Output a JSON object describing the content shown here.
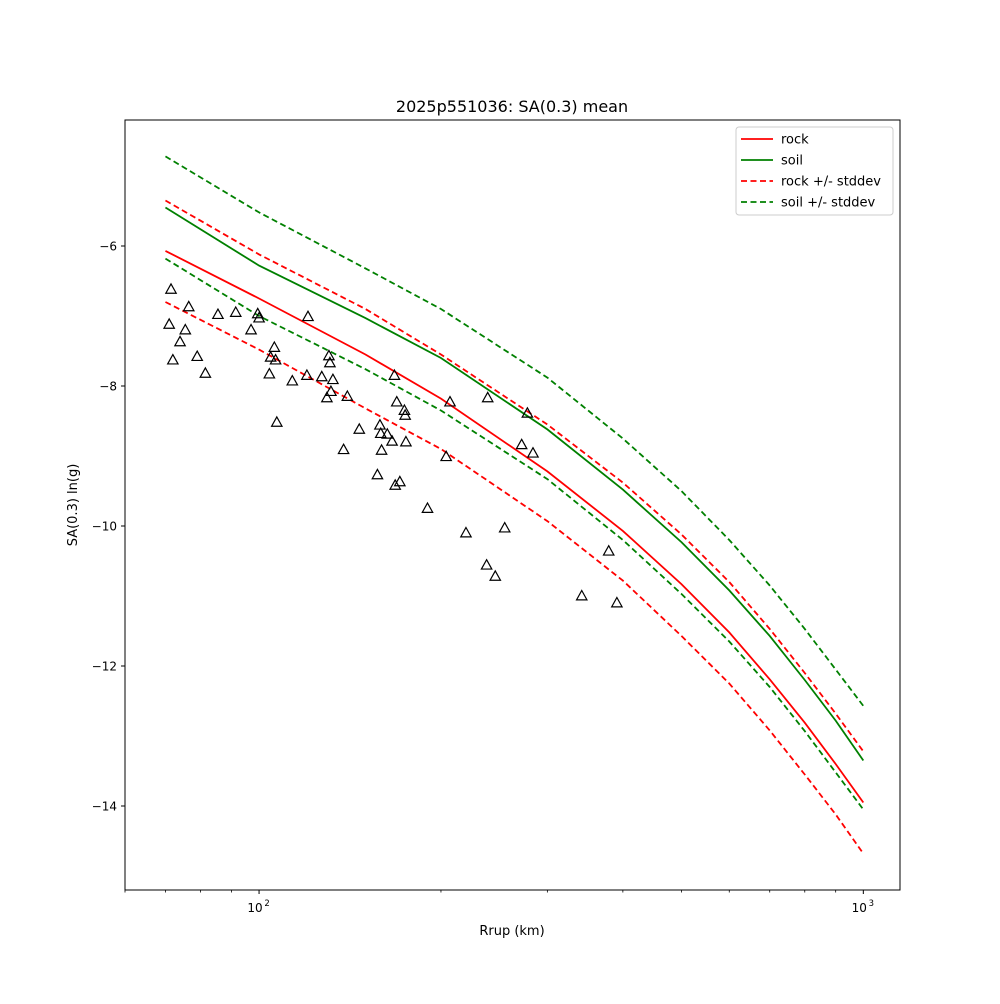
{
  "chart_data": {
    "type": "line",
    "title": "2025p551036: SA(0.3) mean",
    "xlabel": "Rrup (km)",
    "ylabel": "SA(0.3) ln(g)",
    "xscale": "log",
    "xlim": [
      60,
      1150
    ],
    "ylim": [
      -15.2,
      -4.2
    ],
    "grid": false,
    "legend_position": "top-right",
    "x_ticks": [
      {
        "value": 100,
        "base": "10",
        "exp": "2"
      },
      {
        "value": 1000,
        "base": "10",
        "exp": "3"
      }
    ],
    "y_ticks": [
      {
        "value": -14,
        "label": "−14"
      },
      {
        "value": -12,
        "label": "−12"
      },
      {
        "value": -10,
        "label": "−10"
      },
      {
        "value": -8,
        "label": "−8"
      },
      {
        "value": -6,
        "label": "−6"
      }
    ],
    "series": [
      {
        "name": "rock",
        "color": "#ff0000",
        "dash": false,
        "points": [
          [
            70,
            -6.07
          ],
          [
            100,
            -6.75
          ],
          [
            150,
            -7.55
          ],
          [
            200,
            -8.18
          ],
          [
            300,
            -9.22
          ],
          [
            400,
            -10.07
          ],
          [
            500,
            -10.83
          ],
          [
            600,
            -11.52
          ],
          [
            700,
            -12.19
          ],
          [
            800,
            -12.81
          ],
          [
            900,
            -13.4
          ],
          [
            1000,
            -13.95
          ]
        ]
      },
      {
        "name": "soil",
        "color": "#008000",
        "dash": false,
        "points": [
          [
            70,
            -5.45
          ],
          [
            100,
            -6.28
          ],
          [
            150,
            -7.03
          ],
          [
            200,
            -7.6
          ],
          [
            300,
            -8.62
          ],
          [
            400,
            -9.48
          ],
          [
            500,
            -10.23
          ],
          [
            600,
            -10.92
          ],
          [
            700,
            -11.57
          ],
          [
            800,
            -12.2
          ],
          [
            900,
            -12.78
          ],
          [
            1000,
            -13.35
          ]
        ]
      }
    ],
    "stddev_series": [
      {
        "name": "rock +/- stddev",
        "color": "#ff0000",
        "dash": true,
        "upper": [
          [
            70,
            -5.35
          ],
          [
            100,
            -6.12
          ],
          [
            150,
            -6.9
          ],
          [
            200,
            -7.55
          ],
          [
            300,
            -8.55
          ],
          [
            400,
            -9.38
          ],
          [
            500,
            -10.12
          ],
          [
            600,
            -10.8
          ],
          [
            700,
            -11.47
          ],
          [
            800,
            -12.1
          ],
          [
            900,
            -12.68
          ],
          [
            1000,
            -13.22
          ]
        ],
        "lower": [
          [
            70,
            -6.8
          ],
          [
            100,
            -7.48
          ],
          [
            150,
            -8.32
          ],
          [
            200,
            -8.9
          ],
          [
            300,
            -9.93
          ],
          [
            400,
            -10.78
          ],
          [
            500,
            -11.57
          ],
          [
            600,
            -12.25
          ],
          [
            700,
            -12.92
          ],
          [
            800,
            -13.55
          ],
          [
            900,
            -14.12
          ],
          [
            1000,
            -14.68
          ]
        ]
      },
      {
        "name": "soil +/- stddev",
        "color": "#008000",
        "dash": true,
        "upper": [
          [
            70,
            -4.72
          ],
          [
            100,
            -5.52
          ],
          [
            150,
            -6.32
          ],
          [
            200,
            -6.9
          ],
          [
            300,
            -7.88
          ],
          [
            400,
            -8.75
          ],
          [
            500,
            -9.5
          ],
          [
            600,
            -10.2
          ],
          [
            700,
            -10.85
          ],
          [
            800,
            -11.47
          ],
          [
            900,
            -12.05
          ],
          [
            1000,
            -12.57
          ]
        ],
        "lower": [
          [
            70,
            -6.18
          ],
          [
            100,
            -7.0
          ],
          [
            150,
            -7.76
          ],
          [
            200,
            -8.35
          ],
          [
            300,
            -9.33
          ],
          [
            400,
            -10.2
          ],
          [
            500,
            -10.97
          ],
          [
            600,
            -11.65
          ],
          [
            700,
            -12.3
          ],
          [
            800,
            -12.93
          ],
          [
            900,
            -13.52
          ],
          [
            1000,
            -14.05
          ]
        ]
      }
    ],
    "observations": {
      "marker": "triangle",
      "points": [
        [
          71.5,
          -6.62
        ],
        [
          71,
          -7.12
        ],
        [
          72,
          -7.63
        ],
        [
          74,
          -7.37
        ],
        [
          75.5,
          -7.2
        ],
        [
          76.5,
          -6.87
        ],
        [
          79,
          -7.58
        ],
        [
          81.5,
          -7.82
        ],
        [
          85.5,
          -6.98
        ],
        [
          91.5,
          -6.95
        ],
        [
          97,
          -7.2
        ],
        [
          99.5,
          -6.97
        ],
        [
          100,
          -7.03
        ],
        [
          104,
          -7.83
        ],
        [
          104.5,
          -7.59
        ],
        [
          106,
          -7.45
        ],
        [
          106.5,
          -7.63
        ],
        [
          107,
          -8.52
        ],
        [
          113.5,
          -7.93
        ],
        [
          120.5,
          -7.01
        ],
        [
          120,
          -7.85
        ],
        [
          127,
          -7.87
        ],
        [
          129.5,
          -8.17
        ],
        [
          130.5,
          -7.57
        ],
        [
          131,
          -7.67
        ],
        [
          131.5,
          -8.08
        ],
        [
          132.5,
          -7.91
        ],
        [
          138,
          -8.91
        ],
        [
          140,
          -8.15
        ],
        [
          146.5,
          -8.62
        ],
        [
          157,
          -9.27
        ],
        [
          158.5,
          -8.56
        ],
        [
          159,
          -8.68
        ],
        [
          159.5,
          -8.92
        ],
        [
          163,
          -8.69
        ],
        [
          166,
          -8.79
        ],
        [
          167.5,
          -7.85
        ],
        [
          168,
          -9.42
        ],
        [
          169,
          -8.23
        ],
        [
          171,
          -9.37
        ],
        [
          174,
          -8.35
        ],
        [
          174.5,
          -8.42
        ],
        [
          175,
          -8.8
        ],
        [
          190,
          -9.75
        ],
        [
          204,
          -9.01
        ],
        [
          207,
          -8.23
        ],
        [
          220,
          -10.1
        ],
        [
          238,
          -10.56
        ],
        [
          239,
          -8.17
        ],
        [
          246,
          -10.72
        ],
        [
          255,
          -10.03
        ],
        [
          272,
          -8.84
        ],
        [
          278,
          -8.39
        ],
        [
          284,
          -8.96
        ],
        [
          342,
          -11.0
        ],
        [
          379,
          -10.36
        ],
        [
          391,
          -11.1
        ]
      ]
    }
  }
}
